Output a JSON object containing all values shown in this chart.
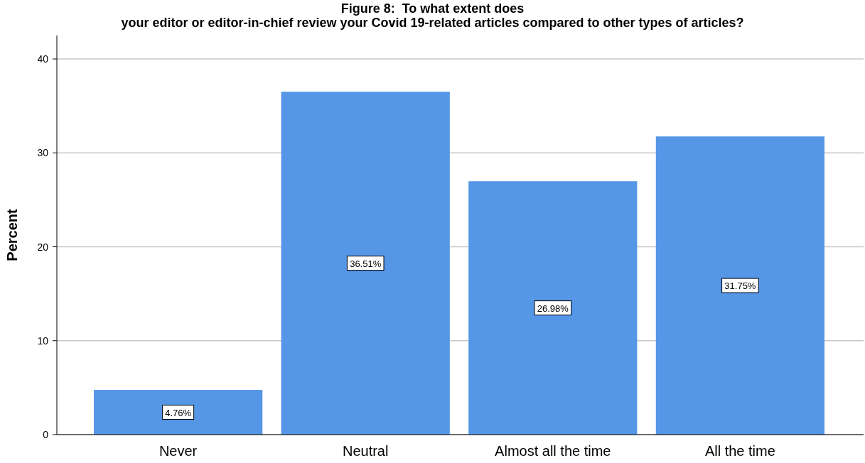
{
  "chart_data": {
    "type": "bar",
    "title": "Figure 8:  To what extent does\nyour editor or editor-in-chief review your Covid 19-related articles compared to other types of articles?",
    "ylabel": "Percent",
    "categories": [
      "Never",
      "Neutral",
      "Almost all the time",
      "All the time"
    ],
    "values": [
      4.76,
      36.51,
      26.98,
      31.75
    ],
    "value_labels": [
      "4.76%",
      "36.51%",
      "26.98%",
      "31.75%"
    ],
    "color": "#5596e6",
    "ylim": [
      0,
      42.5
    ],
    "yticks": [
      0,
      10,
      20,
      30,
      40
    ],
    "grid": "y"
  }
}
